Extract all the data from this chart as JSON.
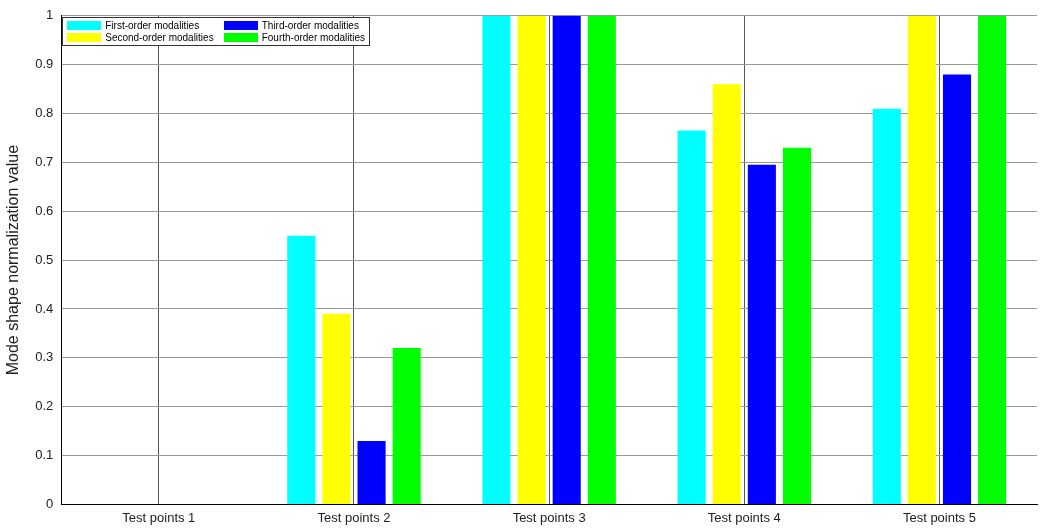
{
  "chart_data": {
    "type": "bar",
    "ylabel": "Mode shape normalization value",
    "categories": [
      "Test points 1",
      "Test points 2",
      "Test points 3",
      "Test points 4",
      "Test points 5"
    ],
    "series": [
      {
        "name": "First-order modalities",
        "color": "#00ffff",
        "values": [
          0,
          0.55,
          1,
          0.765,
          0.81
        ]
      },
      {
        "name": "Second-order modalities",
        "color": "#ffff00",
        "values": [
          0,
          0.39,
          1,
          0.86,
          1
        ]
      },
      {
        "name": "Third-order modalities",
        "color": "#0000ff",
        "values": [
          0,
          0.13,
          1,
          0.695,
          0.88
        ]
      },
      {
        "name": "Fourth-order modalities",
        "color": "#00ff00",
        "values": [
          0,
          0.32,
          1,
          0.73,
          1
        ]
      }
    ],
    "ylim": [
      0,
      1
    ],
    "yticks": [
      0,
      0.1,
      0.2,
      0.3,
      0.4,
      0.5,
      0.6,
      0.7,
      0.8,
      0.9,
      1
    ],
    "grid": true,
    "legend": "top left"
  }
}
